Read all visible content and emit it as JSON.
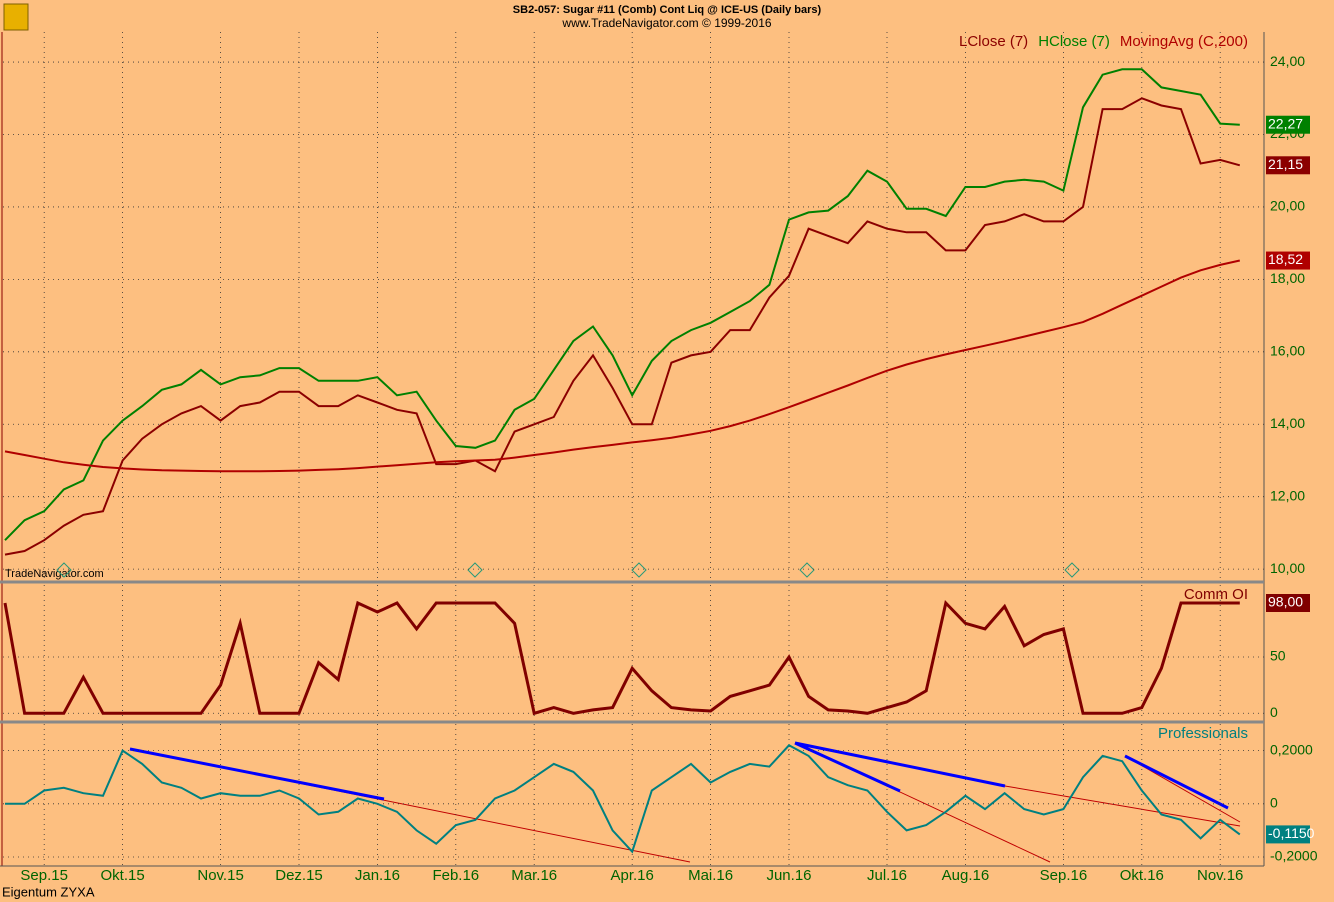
{
  "header": {
    "title": "SB2-057:  Sugar #11 (Comb) Cont Liq @ ICE-US  (Daily bars)",
    "subtitle": "www.TradeNavigator.com © 1999-2016"
  },
  "watermark": "TradeNavigator.com",
  "footer": "Eigentum ZYXA",
  "chart_data": [
    {
      "type": "line",
      "ylim": [
        9.7,
        24.83
      ],
      "yticks": [
        {
          "value": 10,
          "label": "10,00"
        },
        {
          "value": 12,
          "label": "12,00"
        },
        {
          "value": 14,
          "label": "14,00"
        },
        {
          "value": 16,
          "label": "16,00"
        },
        {
          "value": 18,
          "label": "18,00"
        },
        {
          "value": 20,
          "label": "20,00"
        },
        {
          "value": 22,
          "label": "22,00"
        },
        {
          "value": 24,
          "label": "24,00"
        }
      ],
      "grid": true,
      "series": [
        {
          "name": "LClose (7)",
          "color": "#8B0000",
          "last_label": "21,15",
          "values": [
            10.4,
            10.5,
            10.8,
            11.2,
            11.5,
            11.6,
            13.0,
            13.6,
            14.0,
            14.3,
            14.5,
            14.1,
            14.5,
            14.6,
            14.9,
            14.9,
            14.5,
            14.5,
            14.8,
            14.6,
            14.4,
            14.3,
            12.9,
            12.9,
            13.0,
            12.7,
            13.8,
            14.0,
            14.2,
            15.2,
            15.9,
            15.0,
            14.0,
            14.0,
            15.7,
            15.9,
            16.0,
            16.6,
            16.6,
            17.5,
            18.1,
            19.4,
            19.2,
            19.0,
            19.6,
            19.4,
            19.3,
            19.3,
            18.8,
            18.8,
            19.5,
            19.6,
            19.8,
            19.6,
            19.6,
            20.0,
            22.7,
            22.7,
            23.0,
            22.8,
            22.7,
            21.2,
            21.3,
            21.15
          ]
        },
        {
          "name": "HClose (7)",
          "color": "#008000",
          "last_label": "22,27",
          "values": [
            10.8,
            11.35,
            11.6,
            12.2,
            12.45,
            13.55,
            14.1,
            14.5,
            14.95,
            15.1,
            15.5,
            15.1,
            15.3,
            15.35,
            15.55,
            15.55,
            15.2,
            15.2,
            15.2,
            15.3,
            14.8,
            14.9,
            14.1,
            13.4,
            13.35,
            13.55,
            14.4,
            14.7,
            15.5,
            16.3,
            16.7,
            15.9,
            14.8,
            15.75,
            16.3,
            16.6,
            16.8,
            17.1,
            17.4,
            17.85,
            19.65,
            19.85,
            19.9,
            20.3,
            21.0,
            20.7,
            19.95,
            19.95,
            19.75,
            20.55,
            20.55,
            20.7,
            20.75,
            20.7,
            20.45,
            22.75,
            23.65,
            23.8,
            23.8,
            23.3,
            23.2,
            23.1,
            22.3,
            22.27
          ]
        },
        {
          "name": "MovingAvg (C,200)",
          "color": "#B00000",
          "last_label": "18,52",
          "values": [
            13.25,
            13.15,
            13.05,
            12.95,
            12.88,
            12.82,
            12.78,
            12.75,
            12.73,
            12.72,
            12.71,
            12.7,
            12.7,
            12.7,
            12.71,
            12.72,
            12.74,
            12.76,
            12.79,
            12.83,
            12.87,
            12.91,
            12.95,
            12.98,
            13.0,
            13.02,
            13.08,
            13.15,
            13.22,
            13.3,
            13.37,
            13.43,
            13.5,
            13.56,
            13.63,
            13.72,
            13.82,
            13.95,
            14.1,
            14.28,
            14.47,
            14.67,
            14.87,
            15.07,
            15.28,
            15.48,
            15.65,
            15.8,
            15.93,
            16.05,
            16.17,
            16.29,
            16.42,
            16.55,
            16.68,
            16.82,
            17.05,
            17.3,
            17.55,
            17.8,
            18.05,
            18.25,
            18.4,
            18.52
          ]
        }
      ]
    },
    {
      "type": "line",
      "ylim": [
        -6,
        114
      ],
      "yticks": [
        0,
        50
      ],
      "grid": true,
      "series": [
        {
          "name": "Comm OI",
          "color": "#800000",
          "last_label": "98,00",
          "values": [
            98,
            0,
            0,
            0,
            32,
            0,
            0,
            0,
            0,
            0,
            0,
            25,
            80,
            0,
            0,
            0,
            45,
            30,
            98,
            90,
            98,
            75,
            98,
            98,
            98,
            98,
            80,
            0,
            5,
            0,
            3,
            5,
            40,
            20,
            5,
            3,
            2,
            15,
            20,
            25,
            50,
            15,
            3,
            2,
            0,
            5,
            10,
            20,
            98,
            80,
            75,
            95,
            60,
            70,
            75,
            0,
            0,
            0,
            5,
            40,
            98,
            98,
            98,
            98
          ]
        }
      ]
    },
    {
      "type": "line",
      "ylim": [
        -0.23,
        0.3
      ],
      "yticks": [
        {
          "value": 0.2,
          "label": "0,2000"
        },
        0,
        {
          "value": -0.2,
          "label": "-0,2000"
        }
      ],
      "grid": true,
      "categories": [
        null,
        null,
        "Sep.15",
        null,
        null,
        null,
        "Okt.15",
        null,
        null,
        null,
        null,
        "Nov.15",
        null,
        null,
        null,
        "Dez.15",
        null,
        null,
        null,
        "Jan.16",
        null,
        null,
        null,
        "Feb.16",
        null,
        null,
        null,
        "Mar.16",
        null,
        null,
        null,
        null,
        "Apr.16",
        null,
        null,
        null,
        "Mai.16",
        null,
        null,
        null,
        "Jun.16",
        null,
        null,
        null,
        null,
        "Jul.16",
        null,
        null,
        null,
        "Aug.16",
        null,
        null,
        null,
        null,
        "Sep.16",
        null,
        null,
        null,
        "Okt.16",
        null,
        null,
        null,
        "Nov.16",
        null
      ],
      "series": [
        {
          "name": "Professionals",
          "color": "#008080",
          "last_label": "-0,1150",
          "values": [
            0.0,
            0.0,
            0.05,
            0.06,
            0.04,
            0.03,
            0.2,
            0.15,
            0.08,
            0.06,
            0.02,
            0.04,
            0.03,
            0.03,
            0.05,
            0.02,
            -0.04,
            -0.03,
            0.02,
            0.0,
            -0.03,
            -0.1,
            -0.15,
            -0.08,
            -0.06,
            0.02,
            0.05,
            0.1,
            0.15,
            0.12,
            0.05,
            -0.1,
            -0.18,
            0.05,
            0.1,
            0.15,
            0.08,
            0.12,
            0.15,
            0.14,
            0.22,
            0.18,
            0.1,
            0.07,
            0.05,
            -0.03,
            -0.1,
            -0.08,
            -0.03,
            0.03,
            -0.02,
            0.04,
            -0.02,
            -0.04,
            -0.02,
            0.1,
            0.18,
            0.16,
            0.05,
            -0.04,
            -0.06,
            -0.13,
            -0.06,
            -0.115
          ]
        }
      ]
    }
  ]
}
